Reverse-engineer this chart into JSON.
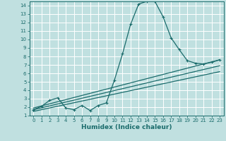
{
  "xlabel": "Humidex (Indice chaleur)",
  "bg_color": "#c0e0e0",
  "grid_color": "#ffffff",
  "line_color": "#1a6b6b",
  "xlim": [
    -0.5,
    23.5
  ],
  "ylim": [
    1,
    14.5
  ],
  "xticks": [
    0,
    1,
    2,
    3,
    4,
    5,
    6,
    7,
    8,
    9,
    10,
    11,
    12,
    13,
    14,
    15,
    16,
    17,
    18,
    19,
    20,
    21,
    22,
    23
  ],
  "yticks": [
    1,
    2,
    3,
    4,
    5,
    6,
    7,
    8,
    9,
    10,
    11,
    12,
    13,
    14
  ],
  "main_series_x": [
    0,
    1,
    2,
    3,
    4,
    5,
    6,
    7,
    8,
    9,
    10,
    11,
    12,
    13,
    14,
    15,
    16,
    17,
    18,
    19,
    20,
    21,
    22,
    23
  ],
  "main_series_y": [
    1.7,
    2.1,
    2.8,
    3.1,
    1.9,
    1.7,
    2.2,
    1.6,
    2.2,
    2.5,
    5.2,
    8.3,
    11.8,
    14.2,
    14.5,
    14.5,
    12.7,
    10.2,
    8.8,
    7.5,
    7.2,
    7.1,
    7.3,
    7.6
  ],
  "line1_x": [
    0,
    23
  ],
  "line1_y": [
    1.5,
    6.2
  ],
  "line2_x": [
    0,
    23
  ],
  "line2_y": [
    1.7,
    6.9
  ],
  "line3_x": [
    0,
    23
  ],
  "line3_y": [
    1.9,
    7.6
  ],
  "marker_size": 3,
  "linewidth": 0.9,
  "tick_fontsize": 5.0,
  "xlabel_fontsize": 6.5
}
